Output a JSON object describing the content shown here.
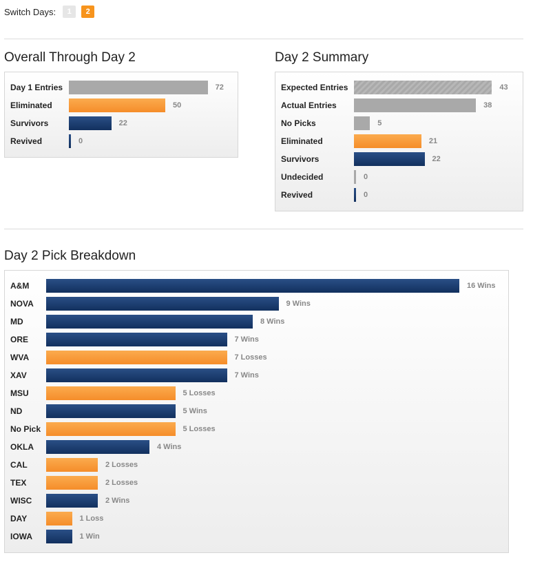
{
  "switch": {
    "label": "Switch Days:",
    "days": [
      {
        "label": "1",
        "active": false
      },
      {
        "label": "2",
        "active": true
      }
    ]
  },
  "colors": {
    "orange": "#f7941d",
    "blue": "#1a3a6b",
    "gray": "#a9a9a9"
  },
  "overall": {
    "title": "Overall Through Day 2",
    "rows": [
      {
        "label": "Day 1 Entries",
        "value": 72,
        "display": "72",
        "color": "gray"
      },
      {
        "label": "Eliminated",
        "value": 50,
        "display": "50",
        "color": "orange"
      },
      {
        "label": "Survivors",
        "value": 22,
        "display": "22",
        "color": "blue"
      },
      {
        "label": "Revived",
        "value": 0,
        "display": "0",
        "color": "blue"
      }
    ]
  },
  "summary": {
    "title": "Day 2 Summary",
    "rows": [
      {
        "label": "Expected Entries",
        "value": 43,
        "display": "43",
        "color": "gray-striped"
      },
      {
        "label": "Actual Entries",
        "value": 38,
        "display": "38",
        "color": "gray"
      },
      {
        "label": "No Picks",
        "value": 5,
        "display": "5",
        "color": "gray"
      },
      {
        "label": "Eliminated",
        "value": 21,
        "display": "21",
        "color": "orange"
      },
      {
        "label": "Survivors",
        "value": 22,
        "display": "22",
        "color": "blue"
      },
      {
        "label": "Undecided",
        "value": 0,
        "display": "0",
        "color": "gray"
      },
      {
        "label": "Revived",
        "value": 0,
        "display": "0",
        "color": "blue"
      }
    ]
  },
  "breakdown": {
    "title": "Day 2 Pick Breakdown",
    "rows": [
      {
        "label": "A&M",
        "value": 16,
        "display": "16 Wins",
        "color": "blue"
      },
      {
        "label": "NOVA",
        "value": 9,
        "display": "9 Wins",
        "color": "blue"
      },
      {
        "label": "MD",
        "value": 8,
        "display": "8 Wins",
        "color": "blue"
      },
      {
        "label": "ORE",
        "value": 7,
        "display": "7 Wins",
        "color": "blue"
      },
      {
        "label": "WVA",
        "value": 7,
        "display": "7 Losses",
        "color": "orange"
      },
      {
        "label": "XAV",
        "value": 7,
        "display": "7 Wins",
        "color": "blue"
      },
      {
        "label": "MSU",
        "value": 5,
        "display": "5 Losses",
        "color": "orange"
      },
      {
        "label": "ND",
        "value": 5,
        "display": "5 Wins",
        "color": "blue"
      },
      {
        "label": "No Pick",
        "value": 5,
        "display": "5 Losses",
        "color": "orange"
      },
      {
        "label": "OKLA",
        "value": 4,
        "display": "4 Wins",
        "color": "blue"
      },
      {
        "label": "CAL",
        "value": 2,
        "display": "2 Losses",
        "color": "orange"
      },
      {
        "label": "TEX",
        "value": 2,
        "display": "2 Losses",
        "color": "orange"
      },
      {
        "label": "WISC",
        "value": 2,
        "display": "2 Wins",
        "color": "blue"
      },
      {
        "label": "DAY",
        "value": 1,
        "display": "1 Loss",
        "color": "orange"
      },
      {
        "label": "IOWA",
        "value": 1,
        "display": "1 Win",
        "color": "blue"
      }
    ]
  }
}
